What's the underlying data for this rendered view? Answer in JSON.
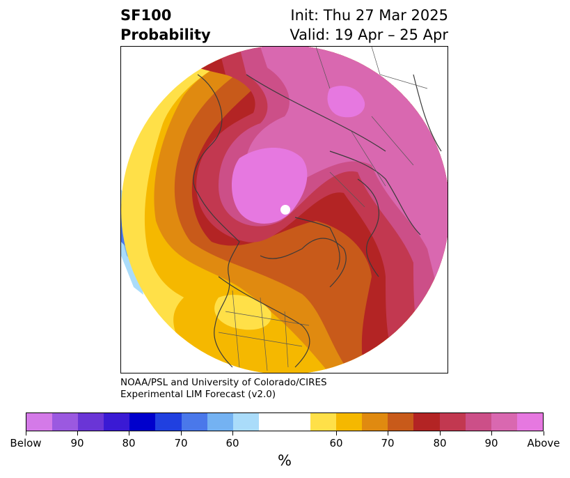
{
  "title": {
    "left_line1": "SF100",
    "left_line2": "Probability",
    "right_line1": "Init: Thu 27 Mar 2025",
    "right_line2": "Valid: 19 Apr – 25 Apr"
  },
  "credit": {
    "line1": "NOAA/PSL and University of Colorado/CIRES",
    "line2": "Experimental LIM Forecast (v2.0)"
  },
  "colorbar": {
    "colors": [
      "#d47ae8",
      "#9b59e0",
      "#6a35d6",
      "#3a1ad4",
      "#0000cc",
      "#2040e0",
      "#4a78ea",
      "#74b2f2",
      "#aadcfa",
      "#ffffff",
      "#ffffff",
      "#ffe048",
      "#f5b800",
      "#e08a10",
      "#c85a1a",
      "#b32424",
      "#c23850",
      "#cc4f88",
      "#d968b0",
      "#e678e0"
    ],
    "tick_labels": [
      "Below",
      "90",
      "80",
      "70",
      "60",
      "60",
      "70",
      "80",
      "90",
      "Above"
    ],
    "units": "%"
  }
}
